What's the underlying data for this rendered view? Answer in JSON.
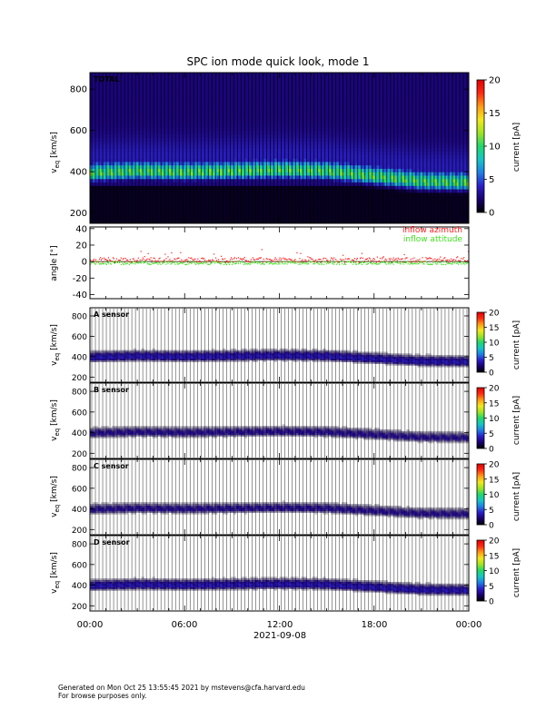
{
  "title": "SPC ion mode quick look, mode 1",
  "date_label": "2021-09-08",
  "x_ticks": [
    "00:00",
    "06:00",
    "12:00",
    "18:00",
    "00:00"
  ],
  "footer": {
    "line1": "Generated on Mon Oct 25 13:55:45 2021 by mstevens@cfa.harvard.edu",
    "line2": "For browse purposes only."
  },
  "colors": {
    "azimuth": "#ff2020",
    "attitude": "#40e020",
    "colormap": [
      "#000000",
      "#1a006e",
      "#2a1fc8",
      "#1f7fe6",
      "#16c6c6",
      "#22d86a",
      "#9fe522",
      "#f2e81e",
      "#ff9a16",
      "#ff2a10",
      "#e00000"
    ]
  },
  "panels": {
    "total": {
      "label": "TOTAL",
      "ylabel_main": "v",
      "ylabel_sub": "eq",
      "ylabel_unit": " [km/s]"
    },
    "angle": {
      "ylabel": "angle [°]"
    },
    "a": {
      "label": "A sensor",
      "ylabel_main": "v",
      "ylabel_sub": "eq",
      "ylabel_unit": " [km/s]"
    },
    "b": {
      "label": "B sensor",
      "ylabel_main": "v",
      "ylabel_sub": "eq",
      "ylabel_unit": " [km/s]"
    },
    "c": {
      "label": "C sensor",
      "ylabel_main": "v",
      "ylabel_sub": "eq",
      "ylabel_unit": " [km/s]"
    },
    "d": {
      "label": "D sensor",
      "ylabel_main": "v",
      "ylabel_sub": "eq",
      "ylabel_unit": " [km/s]"
    }
  },
  "colorbar": {
    "label": "current [pA]"
  },
  "chart_data": [
    {
      "type": "heatmap",
      "panel": "TOTAL",
      "xlabel": "2021-09-08",
      "ylabel": "v_eq [km/s]",
      "ylim": [
        150,
        880
      ],
      "yticks": [
        200,
        400,
        600,
        800
      ],
      "xlim_hours": [
        0,
        24
      ],
      "z_label": "current [pA]",
      "zlim": [
        0,
        20
      ],
      "z_ticks": [
        0,
        5,
        10,
        15,
        20
      ],
      "peak_velocity": {
        "hours": [
          0,
          3,
          6,
          9,
          12,
          15,
          18,
          21,
          24
        ],
        "v": [
          390,
          400,
          395,
          400,
          405,
          400,
          375,
          350,
          345
        ]
      },
      "peak_current_pA": 12
    },
    {
      "type": "scatter",
      "panel": "angle",
      "ylabel": "angle [°]",
      "ylim": [
        -45,
        42
      ],
      "yticks": [
        -40,
        -20,
        0,
        20,
        40
      ],
      "xlim_hours": [
        0,
        24
      ],
      "series": [
        {
          "name": "inflow azimuth",
          "mean_deg": 2
        },
        {
          "name": "inflow attitude",
          "mean_deg": -1
        }
      ]
    },
    {
      "type": "heatmap",
      "panel": "A sensor",
      "ylabel": "v_eq [km/s]",
      "ylim": [
        150,
        880
      ],
      "yticks": [
        200,
        400,
        600,
        800
      ],
      "z_label": "current [pA]",
      "zlim": [
        0,
        20
      ],
      "z_ticks": [
        0,
        5,
        10,
        15,
        20
      ],
      "peak_current_pA": 4
    },
    {
      "type": "heatmap",
      "panel": "B sensor",
      "ylabel": "v_eq [km/s]",
      "ylim": [
        150,
        880
      ],
      "yticks": [
        200,
        400,
        600,
        800
      ],
      "z_label": "current [pA]",
      "zlim": [
        0,
        20
      ],
      "z_ticks": [
        0,
        5,
        10,
        15,
        20
      ],
      "peak_current_pA": 3
    },
    {
      "type": "heatmap",
      "panel": "C sensor",
      "ylabel": "v_eq [km/s]",
      "ylim": [
        150,
        880
      ],
      "yticks": [
        200,
        400,
        600,
        800
      ],
      "z_label": "current [pA]",
      "zlim": [
        0,
        20
      ],
      "z_ticks": [
        0,
        5,
        10,
        15,
        20
      ],
      "peak_current_pA": 3
    },
    {
      "type": "heatmap",
      "panel": "D sensor",
      "ylabel": "v_eq [km/s]",
      "ylim": [
        150,
        880
      ],
      "yticks": [
        200,
        400,
        600,
        800
      ],
      "z_label": "current [pA]",
      "zlim": [
        0,
        20
      ],
      "z_ticks": [
        0,
        5,
        10,
        15,
        20
      ],
      "peak_current_pA": 4
    }
  ]
}
